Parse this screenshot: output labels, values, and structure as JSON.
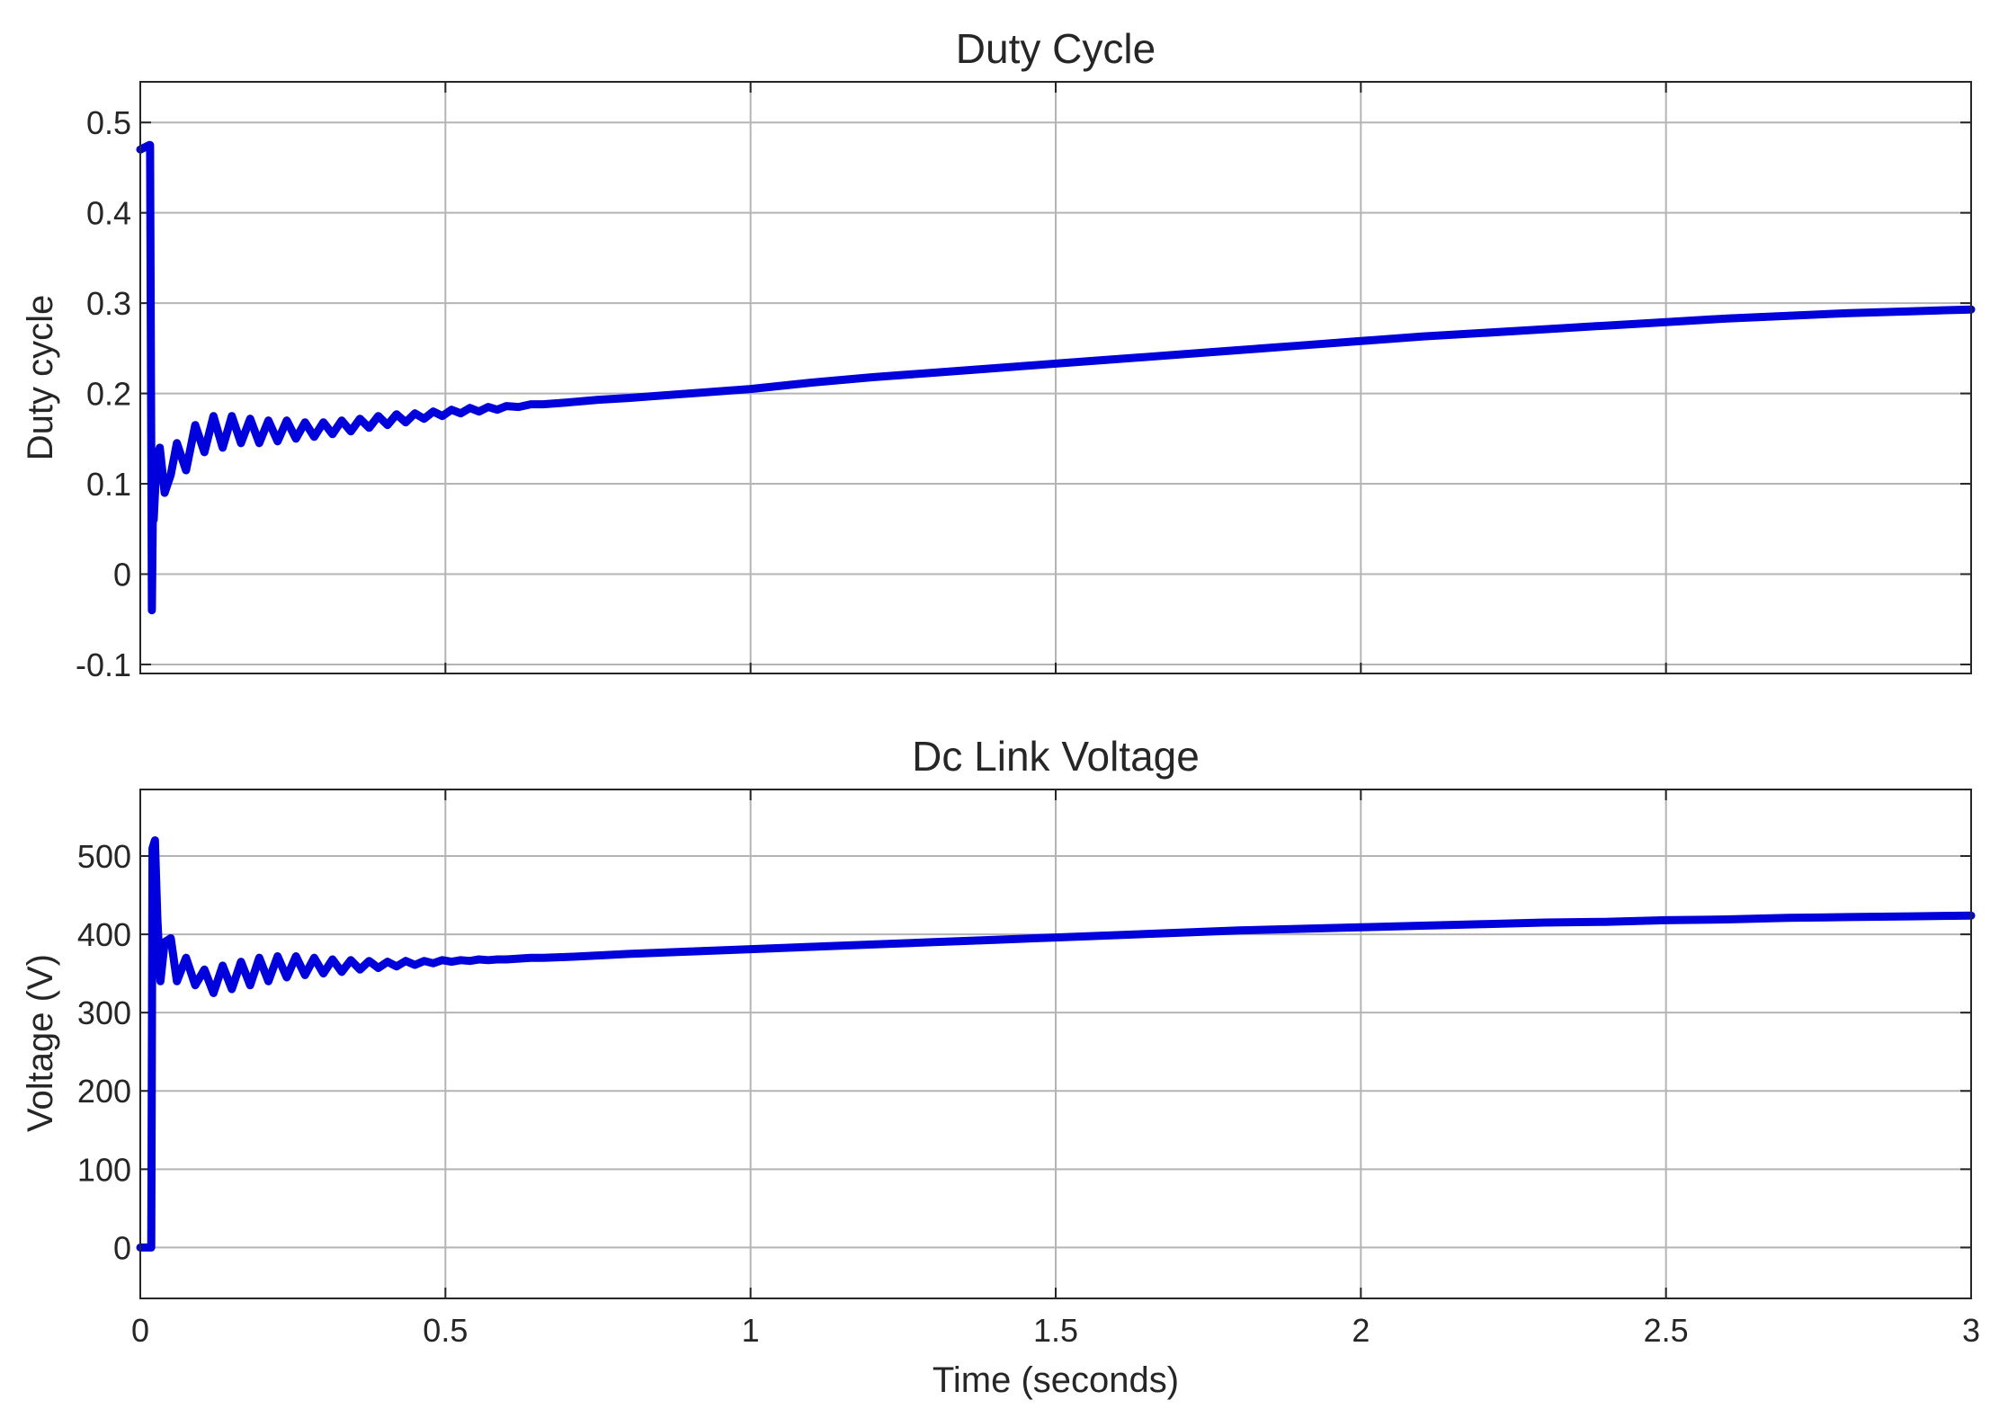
{
  "chart_data": [
    {
      "type": "line",
      "title": "Duty Cycle",
      "xlabel": "",
      "ylabel": "Duty cycle",
      "xlim": [
        0,
        3
      ],
      "ylim": [
        -0.11,
        0.545
      ],
      "xticks": [
        0,
        0.5,
        1,
        1.5,
        2,
        2.5,
        3
      ],
      "xtick_labels_visible": false,
      "yticks": [
        -0.1,
        0,
        0.1,
        0.2,
        0.3,
        0.4,
        0.5
      ],
      "ytick_labels": [
        "-0.1",
        "0",
        "0.1",
        "0.2",
        "0.3",
        "0.4",
        "0.5"
      ],
      "grid": true,
      "color": "#0000dd",
      "series": [
        {
          "x": [
            0,
            0.015,
            0.016,
            0.019,
            0.021,
            0.022,
            0.027,
            0.032,
            0.04,
            0.05,
            0.06,
            0.075,
            0.09,
            0.105,
            0.12,
            0.135,
            0.15,
            0.165,
            0.18,
            0.195,
            0.21,
            0.225,
            0.24,
            0.255,
            0.27,
            0.285,
            0.3,
            0.315,
            0.33,
            0.345,
            0.36,
            0.375,
            0.39,
            0.405,
            0.42,
            0.435,
            0.45,
            0.465,
            0.48,
            0.495,
            0.51,
            0.525,
            0.54,
            0.555,
            0.57,
            0.585,
            0.6,
            0.62,
            0.64,
            0.66,
            0.7,
            0.75,
            0.8,
            0.9,
            1.0,
            1.1,
            1.2,
            1.3,
            1.4,
            1.5,
            1.6,
            1.7,
            1.8,
            1.9,
            2.0,
            2.1,
            2.2,
            2.3,
            2.4,
            2.5,
            2.6,
            2.7,
            2.8,
            2.9,
            3.0
          ],
          "y": [
            0.47,
            0.475,
            0.475,
            -0.04,
            0.1,
            0.06,
            0.13,
            0.14,
            0.09,
            0.11,
            0.145,
            0.115,
            0.165,
            0.135,
            0.175,
            0.14,
            0.175,
            0.145,
            0.172,
            0.145,
            0.17,
            0.147,
            0.17,
            0.15,
            0.168,
            0.152,
            0.168,
            0.155,
            0.17,
            0.158,
            0.172,
            0.162,
            0.175,
            0.165,
            0.177,
            0.168,
            0.178,
            0.172,
            0.18,
            0.175,
            0.182,
            0.178,
            0.184,
            0.18,
            0.185,
            0.182,
            0.186,
            0.185,
            0.188,
            0.188,
            0.19,
            0.193,
            0.195,
            0.2,
            0.205,
            0.212,
            0.218,
            0.223,
            0.228,
            0.233,
            0.238,
            0.243,
            0.248,
            0.253,
            0.258,
            0.263,
            0.267,
            0.271,
            0.275,
            0.279,
            0.283,
            0.286,
            0.289,
            0.291,
            0.293
          ]
        }
      ]
    },
    {
      "type": "line",
      "title": "Dc Link Voltage",
      "xlabel": "Time (seconds)",
      "ylabel": "Voltage (V)",
      "xlim": [
        0,
        3
      ],
      "ylim": [
        -65,
        585
      ],
      "xticks": [
        0,
        0.5,
        1,
        1.5,
        2,
        2.5,
        3
      ],
      "xtick_labels": [
        "0",
        "0.5",
        "1",
        "1.5",
        "2",
        "2.5",
        "3"
      ],
      "yticks": [
        0,
        100,
        200,
        300,
        400,
        500
      ],
      "ytick_labels": [
        "0",
        "100",
        "200",
        "300",
        "400",
        "500"
      ],
      "grid": true,
      "color": "#0000dd",
      "series": [
        {
          "x": [
            0,
            0.018,
            0.02,
            0.024,
            0.028,
            0.033,
            0.04,
            0.05,
            0.06,
            0.075,
            0.09,
            0.105,
            0.12,
            0.135,
            0.15,
            0.165,
            0.18,
            0.195,
            0.21,
            0.225,
            0.24,
            0.255,
            0.27,
            0.285,
            0.3,
            0.315,
            0.33,
            0.345,
            0.36,
            0.375,
            0.39,
            0.405,
            0.42,
            0.435,
            0.45,
            0.465,
            0.48,
            0.495,
            0.51,
            0.525,
            0.54,
            0.555,
            0.57,
            0.585,
            0.6,
            0.62,
            0.64,
            0.66,
            0.7,
            0.75,
            0.8,
            0.9,
            1.0,
            1.1,
            1.2,
            1.3,
            1.4,
            1.5,
            1.6,
            1.7,
            1.8,
            1.9,
            2.0,
            2.1,
            2.2,
            2.3,
            2.4,
            2.5,
            2.6,
            2.7,
            2.8,
            2.9,
            3.0
          ],
          "y": [
            0,
            0,
            510,
            520,
            420,
            340,
            390,
            395,
            340,
            370,
            335,
            355,
            325,
            360,
            330,
            365,
            335,
            370,
            340,
            372,
            345,
            372,
            348,
            370,
            350,
            368,
            352,
            367,
            355,
            366,
            357,
            365,
            359,
            366,
            361,
            366,
            363,
            367,
            365,
            367,
            366,
            368,
            367,
            368,
            368,
            369,
            370,
            370,
            371,
            373,
            375,
            378,
            381,
            384,
            387,
            390,
            393,
            396,
            399,
            402,
            405,
            407,
            409,
            411,
            413,
            415,
            416,
            418,
            419,
            421,
            422,
            423,
            424
          ]
        }
      ]
    }
  ]
}
